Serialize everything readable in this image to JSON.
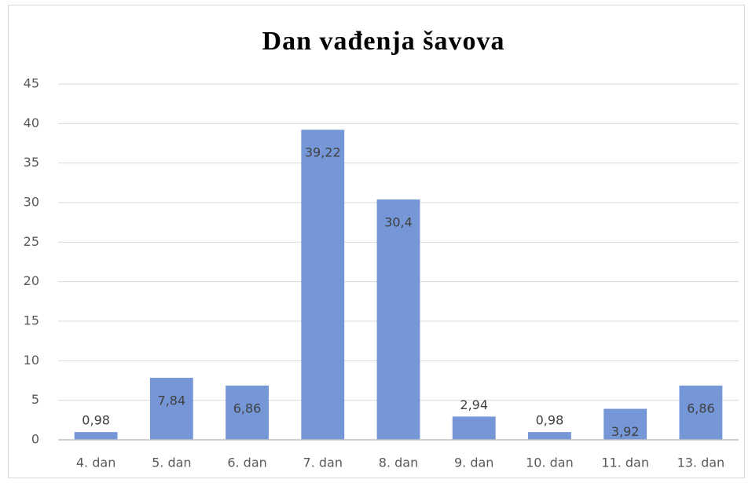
{
  "chart_data": {
    "type": "bar",
    "title": "Dan vađenja šavova",
    "categories": [
      "4. dan",
      "5. dan",
      "6. dan",
      "7. dan",
      "8. dan",
      "9. dan",
      "10. dan",
      "11. dan",
      "13. dan"
    ],
    "values": [
      0.98,
      7.84,
      6.86,
      39.22,
      30.4,
      2.94,
      0.98,
      3.92,
      6.86
    ],
    "value_labels": [
      "0,98",
      "7,84",
      "6,86",
      "39,22",
      "30,4",
      "2,94",
      "0,98",
      "3,92",
      "6,86"
    ],
    "color": "#7597d7",
    "ylim": [
      0,
      45
    ],
    "yticks": [
      0,
      5,
      10,
      15,
      20,
      25,
      30,
      35,
      40,
      45
    ],
    "grid": true
  }
}
